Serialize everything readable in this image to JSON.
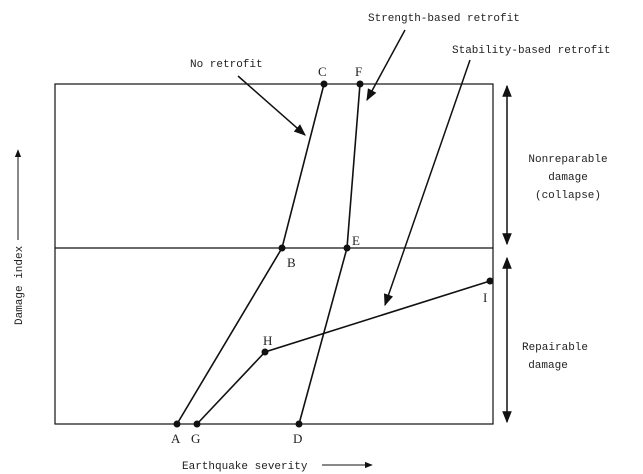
{
  "annotations": {
    "no_retrofit": "No retrofit",
    "strength": "Strength-based retrofit",
    "stability": "Stability-based retrofit"
  },
  "zones": [
    {
      "lines": [
        "Nonreparable",
        "damage",
        "(collapse)"
      ]
    },
    {
      "lines": [
        "Repairable",
        "damage"
      ]
    }
  ],
  "axes": {
    "y": "Damage index",
    "x": "Earthquake severity"
  },
  "points": [
    "A",
    "B",
    "C",
    "D",
    "E",
    "F",
    "G",
    "H",
    "I"
  ]
}
